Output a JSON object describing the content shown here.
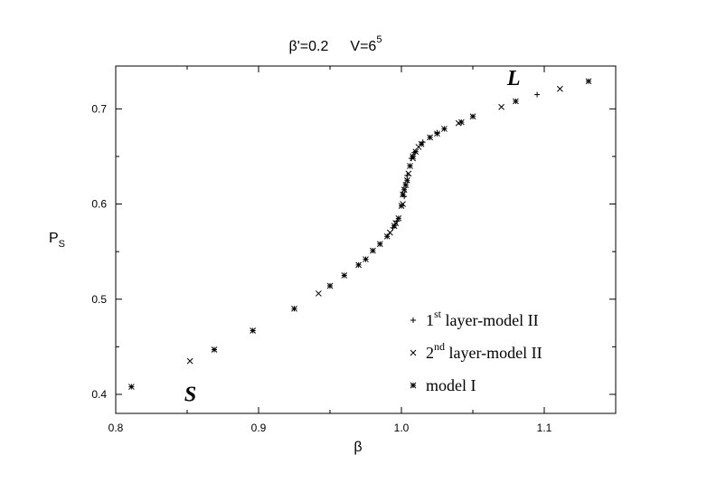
{
  "chart_data": {
    "type": "scatter",
    "title_parts": {
      "beta_prime": "β'=0.2",
      "volume": "V=6",
      "volume_exp": "5"
    },
    "xlabel": "β",
    "ylabel": "P",
    "ylabel_sub": "S",
    "xlim": [
      0.8,
      1.15
    ],
    "ylim": [
      0.38,
      0.745
    ],
    "x_ticks": [
      "0.8",
      "0.9",
      "1.0",
      "1.1"
    ],
    "x_tick_values": [
      0.8,
      0.9,
      1.0,
      1.1
    ],
    "y_ticks": [
      "0.4",
      "0.5",
      "0.6",
      "0.7"
    ],
    "y_tick_values": [
      0.4,
      0.5,
      0.6,
      0.7
    ],
    "legend_position": "bottom-right",
    "annotations": [
      {
        "text": "L",
        "x": 1.074,
        "y": 0.725
      },
      {
        "text": "S",
        "x": 0.848,
        "y": 0.393
      }
    ],
    "series": [
      {
        "name": "1st layer-model II",
        "name_parts": {
          "pre": "1",
          "sup": "st",
          "post": " layer-model II"
        },
        "marker": "plus",
        "points": [
          [
            0.994,
            0.575
          ],
          [
            0.997,
            0.582
          ],
          [
            1.002,
            0.608
          ],
          [
            1.004,
            0.63
          ],
          [
            1.007,
            0.648
          ],
          [
            1.009,
            0.654
          ],
          [
            1.015,
            0.665
          ],
          [
            1.025,
            0.675
          ],
          [
            1.095,
            0.715
          ]
        ]
      },
      {
        "name": "2nd layer-model II",
        "name_parts": {
          "pre": "2",
          "sup": "nd",
          "post": " layer-model II"
        },
        "marker": "cross",
        "points": [
          [
            0.852,
            0.435
          ],
          [
            0.942,
            0.506
          ],
          [
            0.992,
            0.57
          ],
          [
            0.996,
            0.58
          ],
          [
            1.001,
            0.6
          ],
          [
            1.005,
            0.632
          ],
          [
            1.008,
            0.648
          ],
          [
            1.012,
            0.66
          ],
          [
            1.04,
            0.685
          ],
          [
            1.07,
            0.702
          ],
          [
            1.111,
            0.721
          ]
        ]
      },
      {
        "name": "model I",
        "name_parts": {
          "pre": "model I",
          "sup": "",
          "post": ""
        },
        "marker": "asterisk",
        "points": [
          [
            0.811,
            0.408
          ],
          [
            0.869,
            0.447
          ],
          [
            0.896,
            0.467
          ],
          [
            0.925,
            0.49
          ],
          [
            0.95,
            0.514
          ],
          [
            0.96,
            0.525
          ],
          [
            0.97,
            0.536
          ],
          [
            0.975,
            0.542
          ],
          [
            0.98,
            0.551
          ],
          [
            0.985,
            0.558
          ],
          [
            0.99,
            0.566
          ],
          [
            0.995,
            0.577
          ],
          [
            0.998,
            0.585
          ],
          [
            1.0,
            0.598
          ],
          [
            1.001,
            0.61
          ],
          [
            1.002,
            0.615
          ],
          [
            1.003,
            0.62
          ],
          [
            1.004,
            0.625
          ],
          [
            1.006,
            0.64
          ],
          [
            1.008,
            0.65
          ],
          [
            1.01,
            0.655
          ],
          [
            1.014,
            0.663
          ],
          [
            1.02,
            0.67
          ],
          [
            1.025,
            0.674
          ],
          [
            1.03,
            0.679
          ],
          [
            1.042,
            0.686
          ],
          [
            1.05,
            0.692
          ],
          [
            1.08,
            0.708
          ],
          [
            1.131,
            0.729
          ]
        ]
      }
    ]
  }
}
